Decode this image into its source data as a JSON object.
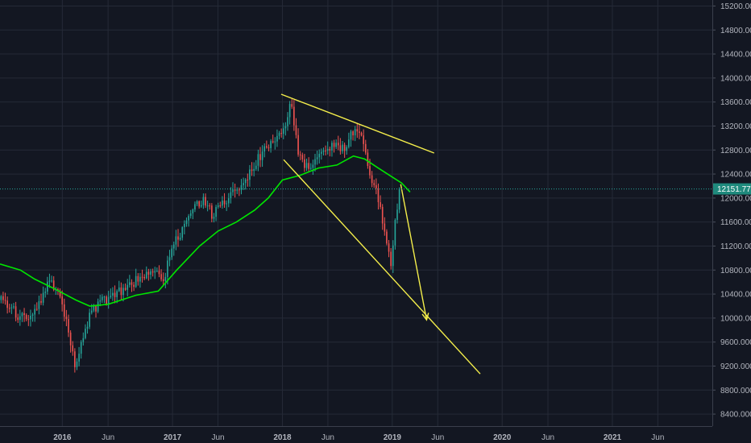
{
  "chart_data": {
    "type": "candlestick",
    "title": "",
    "xlabel": "",
    "ylabel": "",
    "ylim": [
      8200,
      15300
    ],
    "y_ticks": [
      8400,
      8800,
      9200,
      9600,
      10000,
      10400,
      10800,
      11200,
      11600,
      12000,
      12400,
      12800,
      13200,
      13600,
      14000,
      14400,
      14800,
      15200
    ],
    "y_tick_labels": [
      "8400.000",
      "8800.000",
      "9200.000",
      "9600.000",
      "10000.000",
      "10400.000",
      "10800.000",
      "11200.000",
      "11600.000",
      "12000.000",
      "12400.000",
      "12800.000",
      "13200.000",
      "13600.000",
      "14000.000",
      "14400.000",
      "14800.000",
      "15200.000"
    ],
    "x_ticks": [
      {
        "label": "2016",
        "date": "2016-01-01"
      },
      {
        "label": "Jun",
        "date": "2016-06-01"
      },
      {
        "label": "2017",
        "date": "2017-01-01"
      },
      {
        "label": "Jun",
        "date": "2017-06-01"
      },
      {
        "label": "2018",
        "date": "2018-01-01"
      },
      {
        "label": "Jun",
        "date": "2018-06-01"
      },
      {
        "label": "2019",
        "date": "2019-01-01"
      },
      {
        "label": "Jun",
        "date": "2019-06-01"
      },
      {
        "label": "2020",
        "date": "2020-01-01"
      },
      {
        "label": "Jun",
        "date": "2020-06-01"
      },
      {
        "label": "2021",
        "date": "2021-01-01"
      },
      {
        "label": "Jun",
        "date": "2021-06-01"
      }
    ],
    "x_start": "2015-06-08",
    "x_end": "2021-11-29",
    "last_price": 12151.77,
    "last_price_label": "12151.770",
    "bullish_color": "#26a69a",
    "bearish_color": "#ef5350",
    "ma_color": "#00e600",
    "drawing_color": "#f5ef4b",
    "close_path": [
      [
        "2015-06-08",
        10300
      ],
      [
        "2015-08-15",
        10000
      ],
      [
        "2015-10-01",
        10100
      ],
      [
        "2015-11-15",
        10600
      ],
      [
        "2015-12-20",
        10400
      ],
      [
        "2016-01-20",
        9700
      ],
      [
        "2016-02-10",
        9150
      ],
      [
        "2016-02-28",
        9500
      ],
      [
        "2016-04-01",
        10100
      ],
      [
        "2016-05-01",
        10250
      ],
      [
        "2016-06-20",
        10400
      ],
      [
        "2016-08-01",
        10500
      ],
      [
        "2016-09-15",
        10700
      ],
      [
        "2016-10-30",
        10750
      ],
      [
        "2016-11-30",
        10650
      ],
      [
        "2016-12-20",
        11100
      ],
      [
        "2017-02-01",
        11500
      ],
      [
        "2017-03-01",
        11800
      ],
      [
        "2017-04-10",
        12000
      ],
      [
        "2017-05-10",
        11700
      ],
      [
        "2017-06-15",
        11900
      ],
      [
        "2017-07-20",
        12100
      ],
      [
        "2017-08-20",
        12200
      ],
      [
        "2017-09-30",
        12600
      ],
      [
        "2017-11-01",
        12800
      ],
      [
        "2017-12-15",
        13000
      ],
      [
        "2018-01-12",
        13300
      ],
      [
        "2018-01-26",
        13600
      ],
      [
        "2018-02-05",
        13200
      ],
      [
        "2018-02-20",
        12700
      ],
      [
        "2018-03-25",
        12500
      ],
      [
        "2018-05-01",
        12750
      ],
      [
        "2018-06-15",
        12900
      ],
      [
        "2018-07-20",
        12800
      ],
      [
        "2018-08-10",
        13050
      ],
      [
        "2018-08-30",
        13200
      ],
      [
        "2018-09-20",
        13000
      ],
      [
        "2018-10-15",
        12400
      ],
      [
        "2018-10-30",
        12200
      ],
      [
        "2018-11-20",
        11800
      ],
      [
        "2018-12-10",
        11300
      ],
      [
        "2018-12-24",
        10900
      ],
      [
        "2019-01-08",
        11700
      ],
      [
        "2019-01-25",
        12151.77
      ]
    ],
    "ma_path": [
      [
        "2015-06-08",
        10900
      ],
      [
        "2015-08-15",
        10800
      ],
      [
        "2015-10-01",
        10650
      ],
      [
        "2015-12-01",
        10500
      ],
      [
        "2016-02-15",
        10300
      ],
      [
        "2016-04-01",
        10200
      ],
      [
        "2016-06-01",
        10230
      ],
      [
        "2016-09-01",
        10380
      ],
      [
        "2016-11-15",
        10450
      ],
      [
        "2017-01-15",
        10800
      ],
      [
        "2017-04-01",
        11200
      ],
      [
        "2017-06-01",
        11450
      ],
      [
        "2017-08-01",
        11600
      ],
      [
        "2017-10-01",
        11800
      ],
      [
        "2017-11-15",
        12000
      ],
      [
        "2018-01-01",
        12300
      ],
      [
        "2018-03-01",
        12380
      ],
      [
        "2018-05-01",
        12500
      ],
      [
        "2018-07-01",
        12550
      ],
      [
        "2018-08-25",
        12700
      ],
      [
        "2018-10-01",
        12650
      ],
      [
        "2018-11-15",
        12500
      ],
      [
        "2019-01-01",
        12350
      ],
      [
        "2019-02-01",
        12250
      ],
      [
        "2019-03-01",
        12100
      ]
    ],
    "annotations": [
      {
        "kind": "trendline",
        "from": [
          "2017-12-28",
          13730
        ],
        "to": [
          "2019-05-20",
          12750
        ]
      },
      {
        "kind": "trendline",
        "from": [
          "2018-01-05",
          12640
        ],
        "to": [
          "2019-10-20",
          9070
        ]
      },
      {
        "kind": "trendline",
        "from": [
          "2019-01-29",
          12230
        ],
        "to": [
          "2019-04-25",
          9970
        ]
      }
    ]
  }
}
